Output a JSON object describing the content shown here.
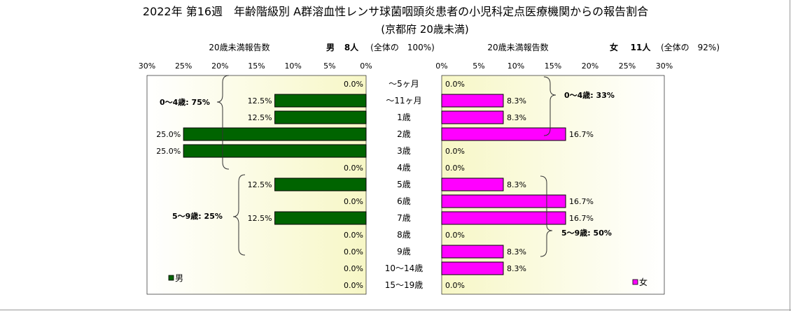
{
  "header": {
    "title": "2022年 第16週　年齢階級別 A群溶血性レンサ球菌咽頭炎患者の小児科定点医療機関からの報告割合",
    "subtitle": "(京都府 20歳未満)"
  },
  "male": {
    "count_label": "20歳未満報告数",
    "sex": "男",
    "count": "8人",
    "share": "(全体の　100%)",
    "legend": "男",
    "group1": "0～4歳: 75%",
    "group2": "5～9歳: 25%"
  },
  "female": {
    "count_label": "20歳未満報告数",
    "sex": "女",
    "count": "11人",
    "share": "(全体の　92%)",
    "legend": "女",
    "group1": "0～4歳: 33%",
    "group2": "5～9歳: 50%"
  },
  "chart_data": {
    "type": "bar",
    "orientation": "horizontal",
    "layout": "population-pyramid",
    "title": "2022年 第16週　年齢階級別 A群溶血性レンサ球菌咽頭炎患者の小児科定点医療機関からの報告割合",
    "subtitle": "(京都府 20歳未満)",
    "categories": [
      "～5ヶ月",
      "～11ヶ月",
      "1歳",
      "2歳",
      "3歳",
      "4歳",
      "5歳",
      "6歳",
      "7歳",
      "8歳",
      "9歳",
      "10～14歳",
      "15～19歳"
    ],
    "x_ticks": [
      "0%",
      "5%",
      "10%",
      "15%",
      "20%",
      "25%",
      "30%"
    ],
    "xlim": [
      0,
      30
    ],
    "grid": false,
    "series": [
      {
        "name": "男",
        "color": "#006400",
        "side": "left",
        "values": [
          0.0,
          12.5,
          12.5,
          25.0,
          25.0,
          0.0,
          12.5,
          0.0,
          12.5,
          0.0,
          0.0,
          0.0,
          0.0
        ],
        "labels": [
          "0.0%",
          "12.5%",
          "12.5%",
          "25.0%",
          "25.0%",
          "0.0%",
          "12.5%",
          "0.0%",
          "12.5%",
          "0.0%",
          "0.0%",
          "0.0%",
          "0.0%"
        ]
      },
      {
        "name": "女",
        "color": "#ff00ff",
        "side": "right",
        "values": [
          0.0,
          8.3,
          8.3,
          16.7,
          0.0,
          0.0,
          8.3,
          16.7,
          16.7,
          0.0,
          8.3,
          8.3,
          0.0
        ],
        "labels": [
          "0.0%",
          "8.3%",
          "8.3%",
          "16.7%",
          "0.0%",
          "0.0%",
          "8.3%",
          "16.7%",
          "16.7%",
          "0.0%",
          "8.3%",
          "8.3%",
          "0.0%"
        ]
      }
    ],
    "legend_placement": "bottom"
  }
}
